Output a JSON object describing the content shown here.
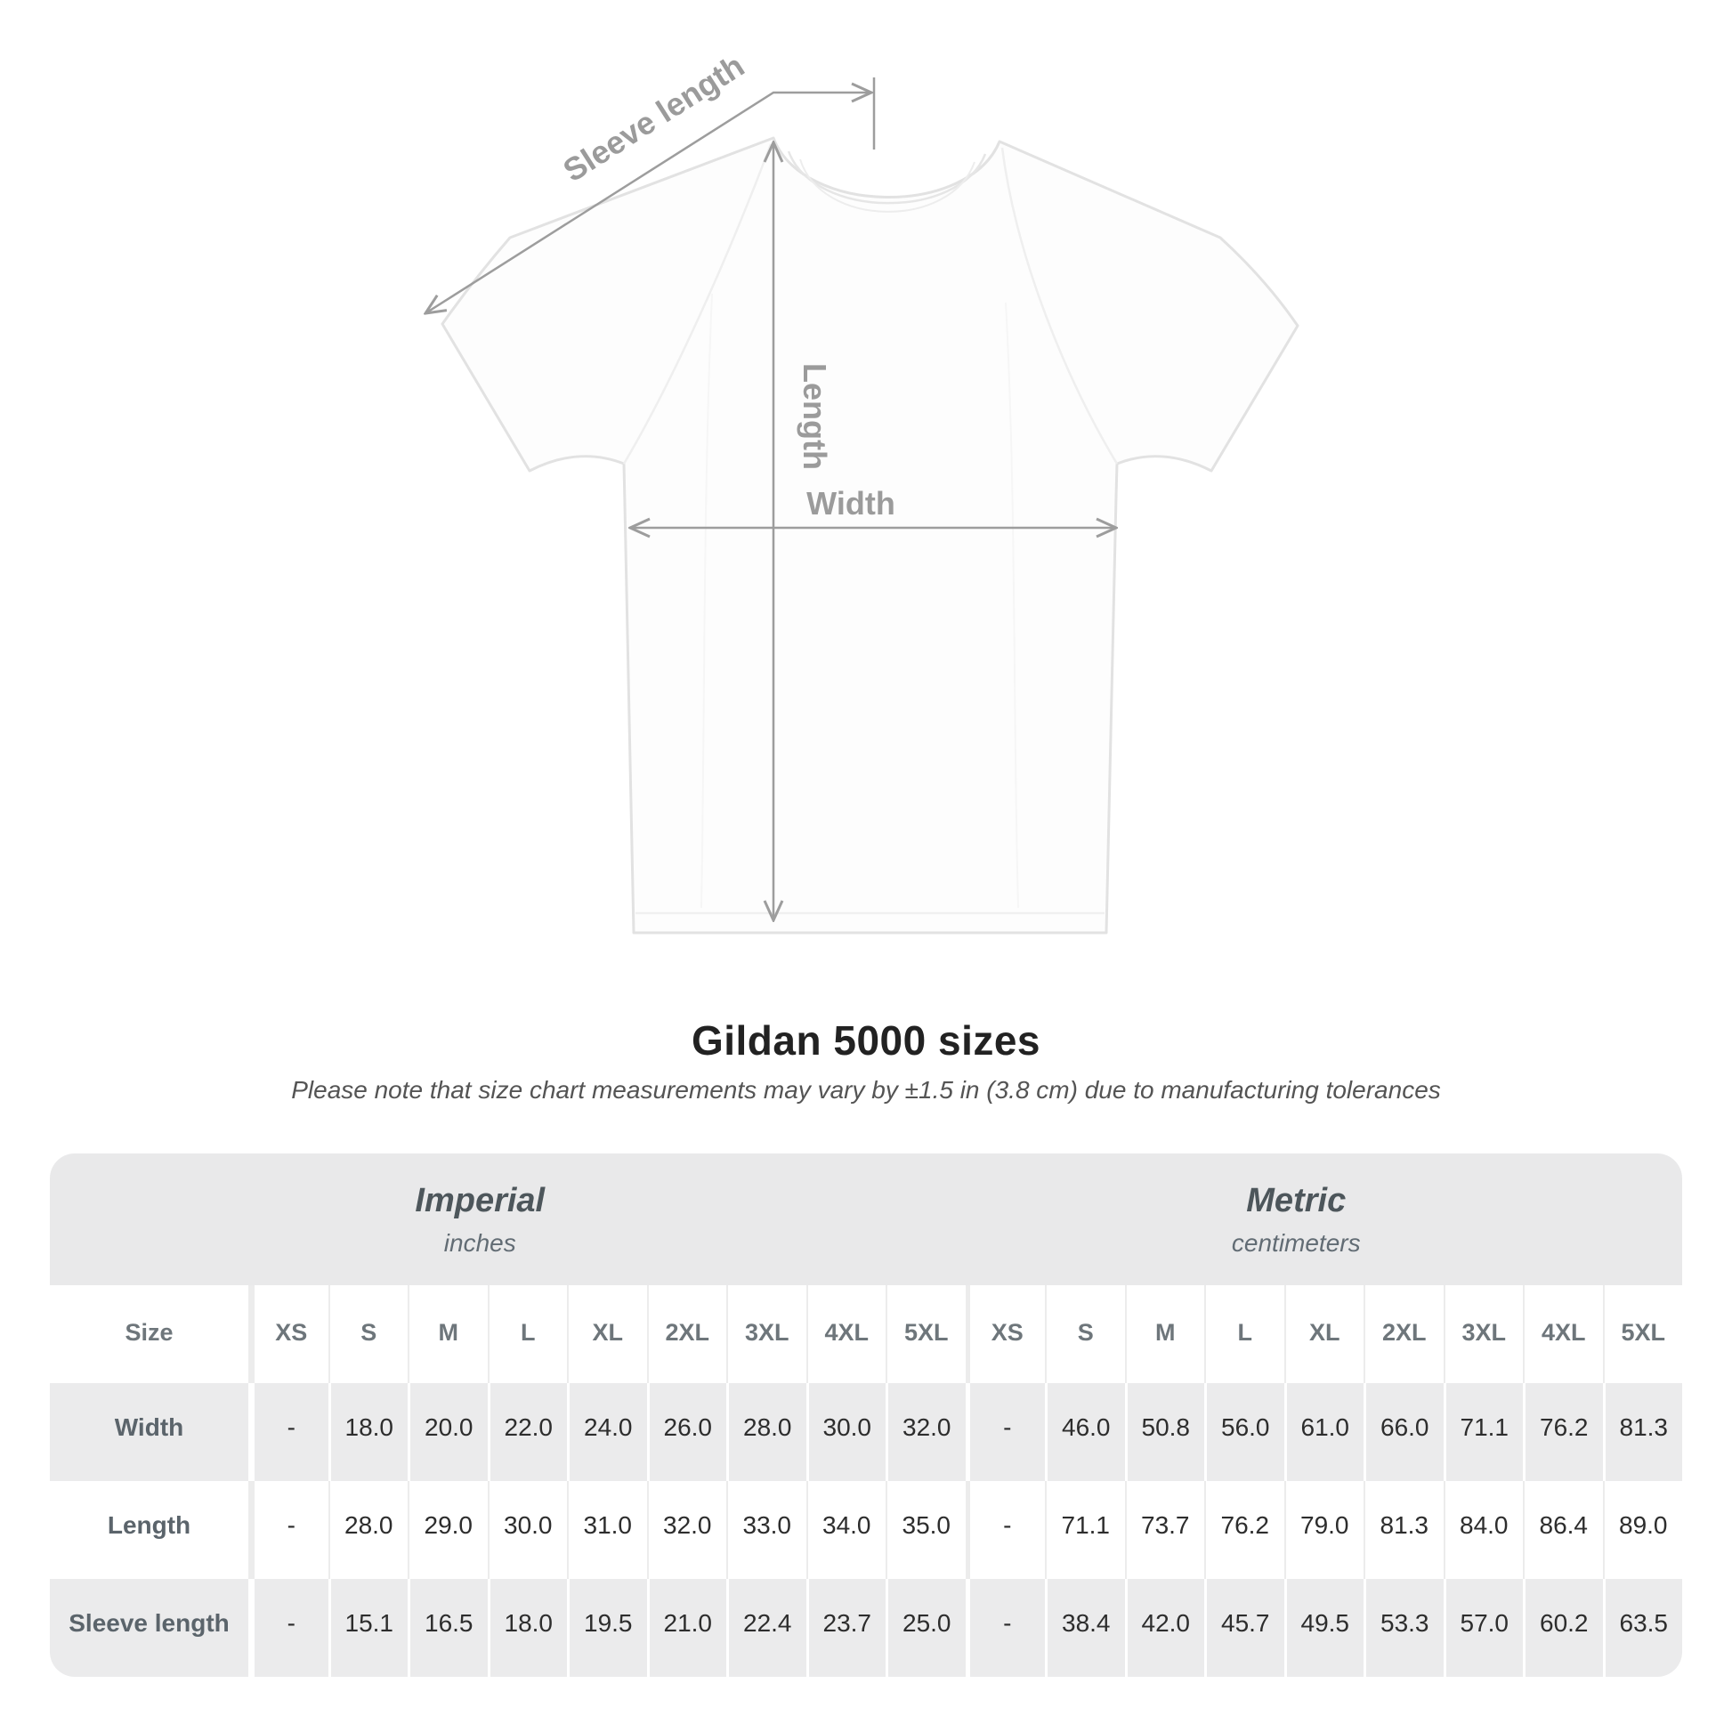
{
  "page": {
    "title": "Gildan 5000 sizes",
    "note": "Please note that size chart measurements may vary by ±1.5 in (3.8 cm) due to manufacturing tolerances"
  },
  "diagram": {
    "sleeve_length_label": "Sleeve length",
    "length_label": "Length",
    "width_label": "Width"
  },
  "table": {
    "size_header": "Size",
    "sections": [
      {
        "name": "Imperial",
        "unit": "inches"
      },
      {
        "name": "Metric",
        "unit": "centimeters"
      }
    ],
    "sizes": [
      "XS",
      "S",
      "M",
      "L",
      "XL",
      "2XL",
      "3XL",
      "4XL",
      "5XL"
    ],
    "rows": [
      {
        "label": "Width",
        "imperial": [
          "-",
          "18.0",
          "20.0",
          "22.0",
          "24.0",
          "26.0",
          "28.0",
          "30.0",
          "32.0"
        ],
        "metric": [
          "-",
          "46.0",
          "50.8",
          "56.0",
          "61.0",
          "66.0",
          "71.1",
          "76.2",
          "81.3"
        ]
      },
      {
        "label": "Length",
        "imperial": [
          "-",
          "28.0",
          "29.0",
          "30.0",
          "31.0",
          "32.0",
          "33.0",
          "34.0",
          "35.0"
        ],
        "metric": [
          "-",
          "71.1",
          "73.7",
          "76.2",
          "79.0",
          "81.3",
          "84.0",
          "86.4",
          "89.0"
        ]
      },
      {
        "label": "Sleeve length",
        "imperial": [
          "-",
          "15.1",
          "16.5",
          "18.0",
          "19.5",
          "21.0",
          "22.4",
          "23.7",
          "25.0"
        ],
        "metric": [
          "-",
          "38.4",
          "42.0",
          "45.7",
          "49.5",
          "53.3",
          "57.0",
          "60.2",
          "63.5"
        ]
      }
    ]
  },
  "colors": {
    "arrow_gray": "#9d9d9d",
    "label_gray": "#9b9b9b",
    "table_band": "#e9e9ea",
    "row_alt": "#ebebec",
    "title_text": "#222222",
    "section_text": "#4d565b",
    "header_text": "#6e767b",
    "shirt_outline": "#e2e2e2"
  }
}
